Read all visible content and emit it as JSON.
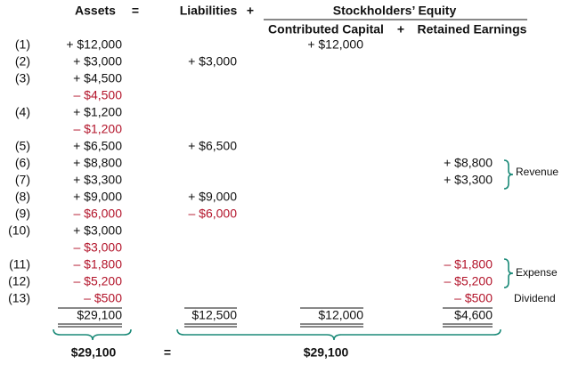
{
  "header": {
    "assets": "Assets",
    "equals": "=",
    "liabilities": "Liabilities",
    "plus": "+",
    "equity": "Stockholders’ Equity",
    "contributed_capital": "Contributed Capital",
    "plus_equity": "+",
    "retained_earnings": "Retained Earnings"
  },
  "rows": [
    {
      "label": "(1)",
      "assets": "+ $12,000",
      "contributed_capital": "+ $12,000"
    },
    {
      "label": "(2)",
      "assets": "+ $3,000",
      "liabilities": "+ $3,000"
    },
    {
      "label": "(3)",
      "assets": "+ $4,500"
    },
    {
      "assets": "– $4,500"
    },
    {
      "label": "(4)",
      "assets": "+ $1,200"
    },
    {
      "assets": "– $1,200"
    },
    {
      "label": "(5)",
      "assets": "+ $6,500",
      "liabilities": "+ $6,500"
    },
    {
      "label": "(6)",
      "assets": "+ $8,800",
      "retained_earnings": "+ $8,800"
    },
    {
      "label": "(7)",
      "assets": "+ $3,300",
      "retained_earnings": "+ $3,300"
    },
    {
      "label": "(8)",
      "assets": "+ $9,000",
      "liabilities": "+ $9,000"
    },
    {
      "label": "(9)",
      "assets": "– $6,000",
      "liabilities": "– $6,000"
    },
    {
      "label": "(10)",
      "assets": "+ $3,000"
    },
    {
      "assets": "– $3,000"
    },
    {
      "label": "(11)",
      "assets": "– $1,800",
      "retained_earnings": "– $1,800"
    },
    {
      "label": "(12)",
      "assets": "– $5,200",
      "retained_earnings": "– $5,200"
    },
    {
      "label": "(13)",
      "assets": "– $500",
      "retained_earnings": "– $500"
    }
  ],
  "totals": {
    "assets": "$29,100",
    "liabilities": "$12,500",
    "contributed_capital": "$12,000",
    "retained_earnings": "$4,600"
  },
  "annotations": {
    "revenue": "Revenue",
    "expense": "Expense",
    "dividend": "Dividend"
  },
  "summary": {
    "left": "$29,100",
    "equals": "=",
    "right": "$29,100"
  }
}
